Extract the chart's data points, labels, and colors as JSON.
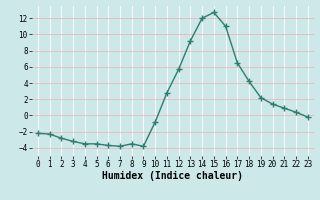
{
  "x": [
    0,
    1,
    2,
    3,
    4,
    5,
    6,
    7,
    8,
    9,
    10,
    11,
    12,
    13,
    14,
    15,
    16,
    17,
    18,
    19,
    20,
    21,
    22,
    23
  ],
  "y": [
    -2.2,
    -2.3,
    -2.8,
    -3.2,
    -3.5,
    -3.5,
    -3.7,
    -3.8,
    -3.5,
    -3.8,
    -0.8,
    2.8,
    5.7,
    9.2,
    12.0,
    12.7,
    11.0,
    6.5,
    4.2,
    2.2,
    1.4,
    0.9,
    0.4,
    -0.2
  ],
  "line_color": "#2e7d6e",
  "marker": "+",
  "marker_size": 4,
  "linewidth": 1.0,
  "xlabel": "Humidex (Indice chaleur)",
  "ylim": [
    -5,
    13.5
  ],
  "xlim": [
    -0.5,
    23.5
  ],
  "yticks": [
    -4,
    -2,
    0,
    2,
    4,
    6,
    8,
    10,
    12
  ],
  "xticks": [
    0,
    1,
    2,
    3,
    4,
    5,
    6,
    7,
    8,
    9,
    10,
    11,
    12,
    13,
    14,
    15,
    16,
    17,
    18,
    19,
    20,
    21,
    22,
    23
  ],
  "background_color": "#cce8e8",
  "grid_color_h": "#e8b8b8",
  "grid_color_v": "#ffffff",
  "tick_fontsize": 5.5,
  "label_fontsize": 7
}
